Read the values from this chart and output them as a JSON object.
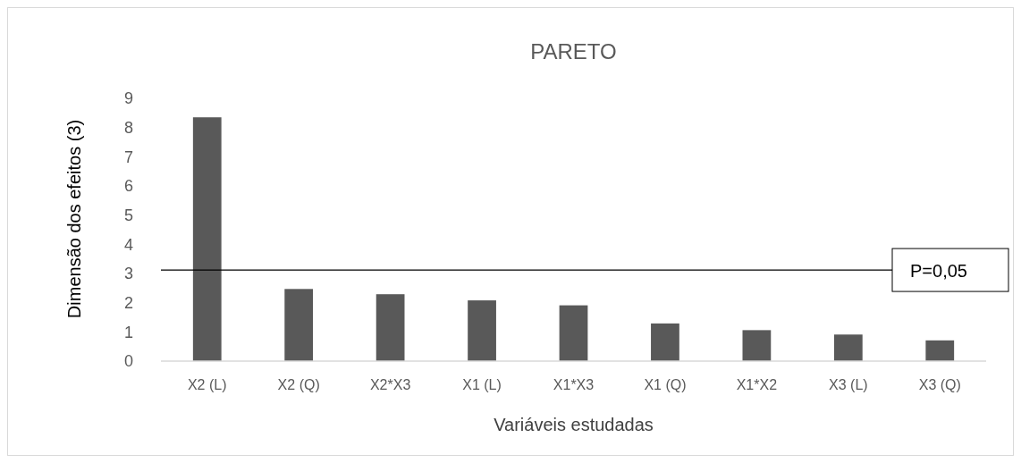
{
  "chart_data": {
    "type": "bar",
    "title": "PARETO",
    "xlabel": "Variáveis estudadas",
    "ylabel": "Dimensão dos efeitos (3)",
    "categories": [
      "X2 (L)",
      "X2 (Q)",
      "X2*X3",
      "X1 (L)",
      "X1*X3",
      "X1 (Q)",
      "X1*X2",
      "X3 (L)",
      "X3 (Q)"
    ],
    "values": [
      8.35,
      2.47,
      2.29,
      2.08,
      1.91,
      1.29,
      1.06,
      0.91,
      0.71
    ],
    "color": "#595959",
    "ylim": [
      0,
      9
    ],
    "yticks": [
      0,
      1,
      2,
      3,
      4,
      5,
      6,
      7,
      8,
      9
    ],
    "grid": false,
    "ref_lines": [
      {
        "axis": "y",
        "value": 3.12,
        "color": "#000000"
      }
    ],
    "annotations": [
      "P=0,05"
    ]
  }
}
